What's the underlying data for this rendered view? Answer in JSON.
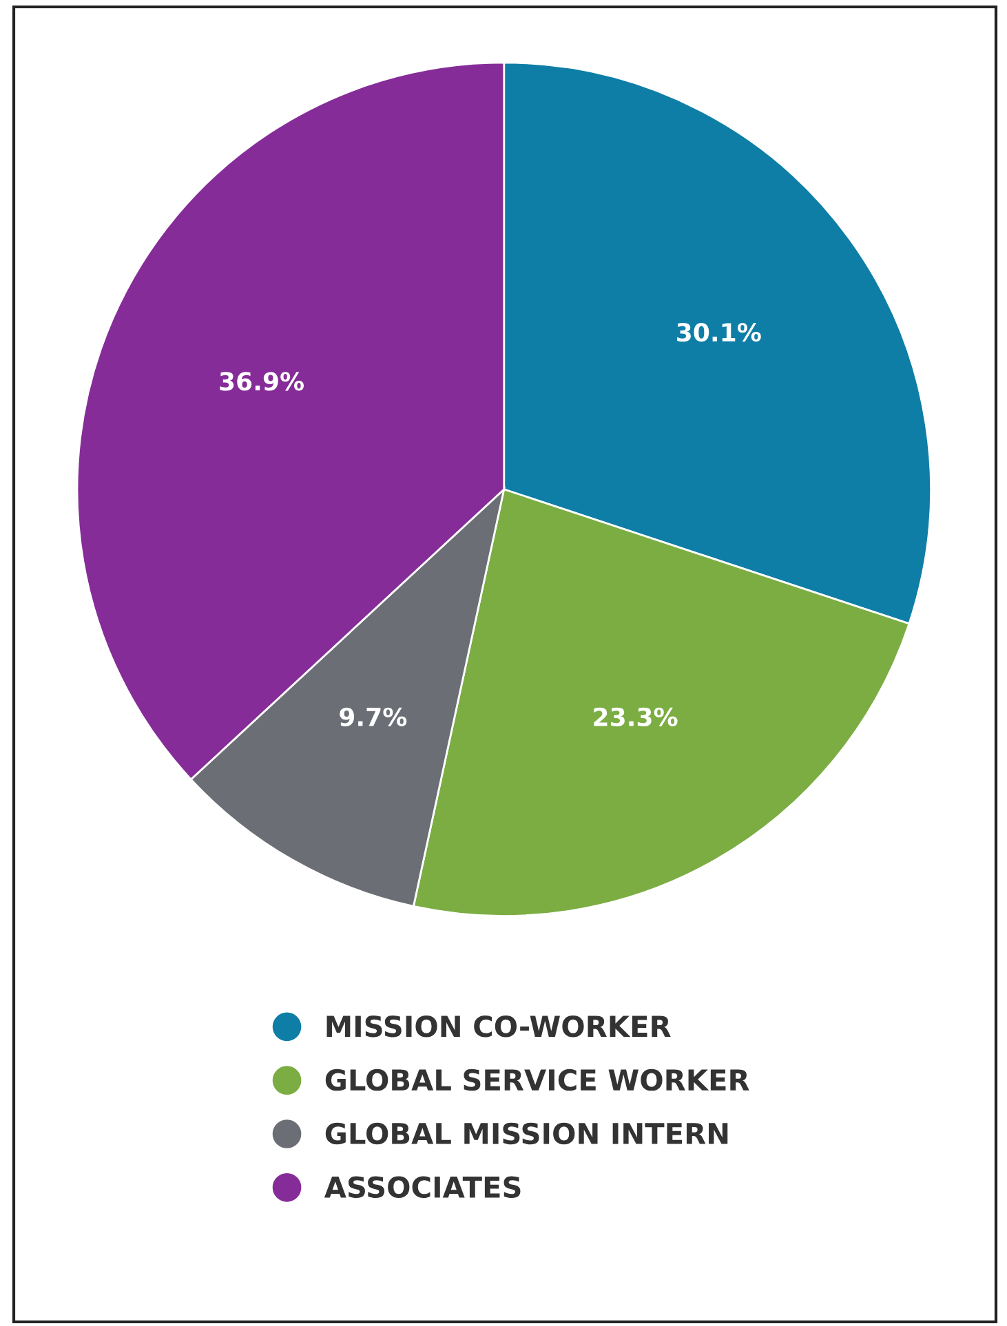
{
  "chart_data": {
    "type": "pie",
    "categories": [
      "MISSION CO-WORKER",
      "GLOBAL SERVICE WORKER",
      "GLOBAL MISSION INTERN",
      "ASSOCIATES"
    ],
    "values": [
      30.1,
      23.3,
      9.7,
      36.9
    ],
    "colors": [
      "#0e7ea6",
      "#7bad43",
      "#6b6e74",
      "#862c98"
    ],
    "value_labels": [
      "30.1%",
      "23.3%",
      "9.7%",
      "36.9%"
    ],
    "legend": "bottom"
  }
}
